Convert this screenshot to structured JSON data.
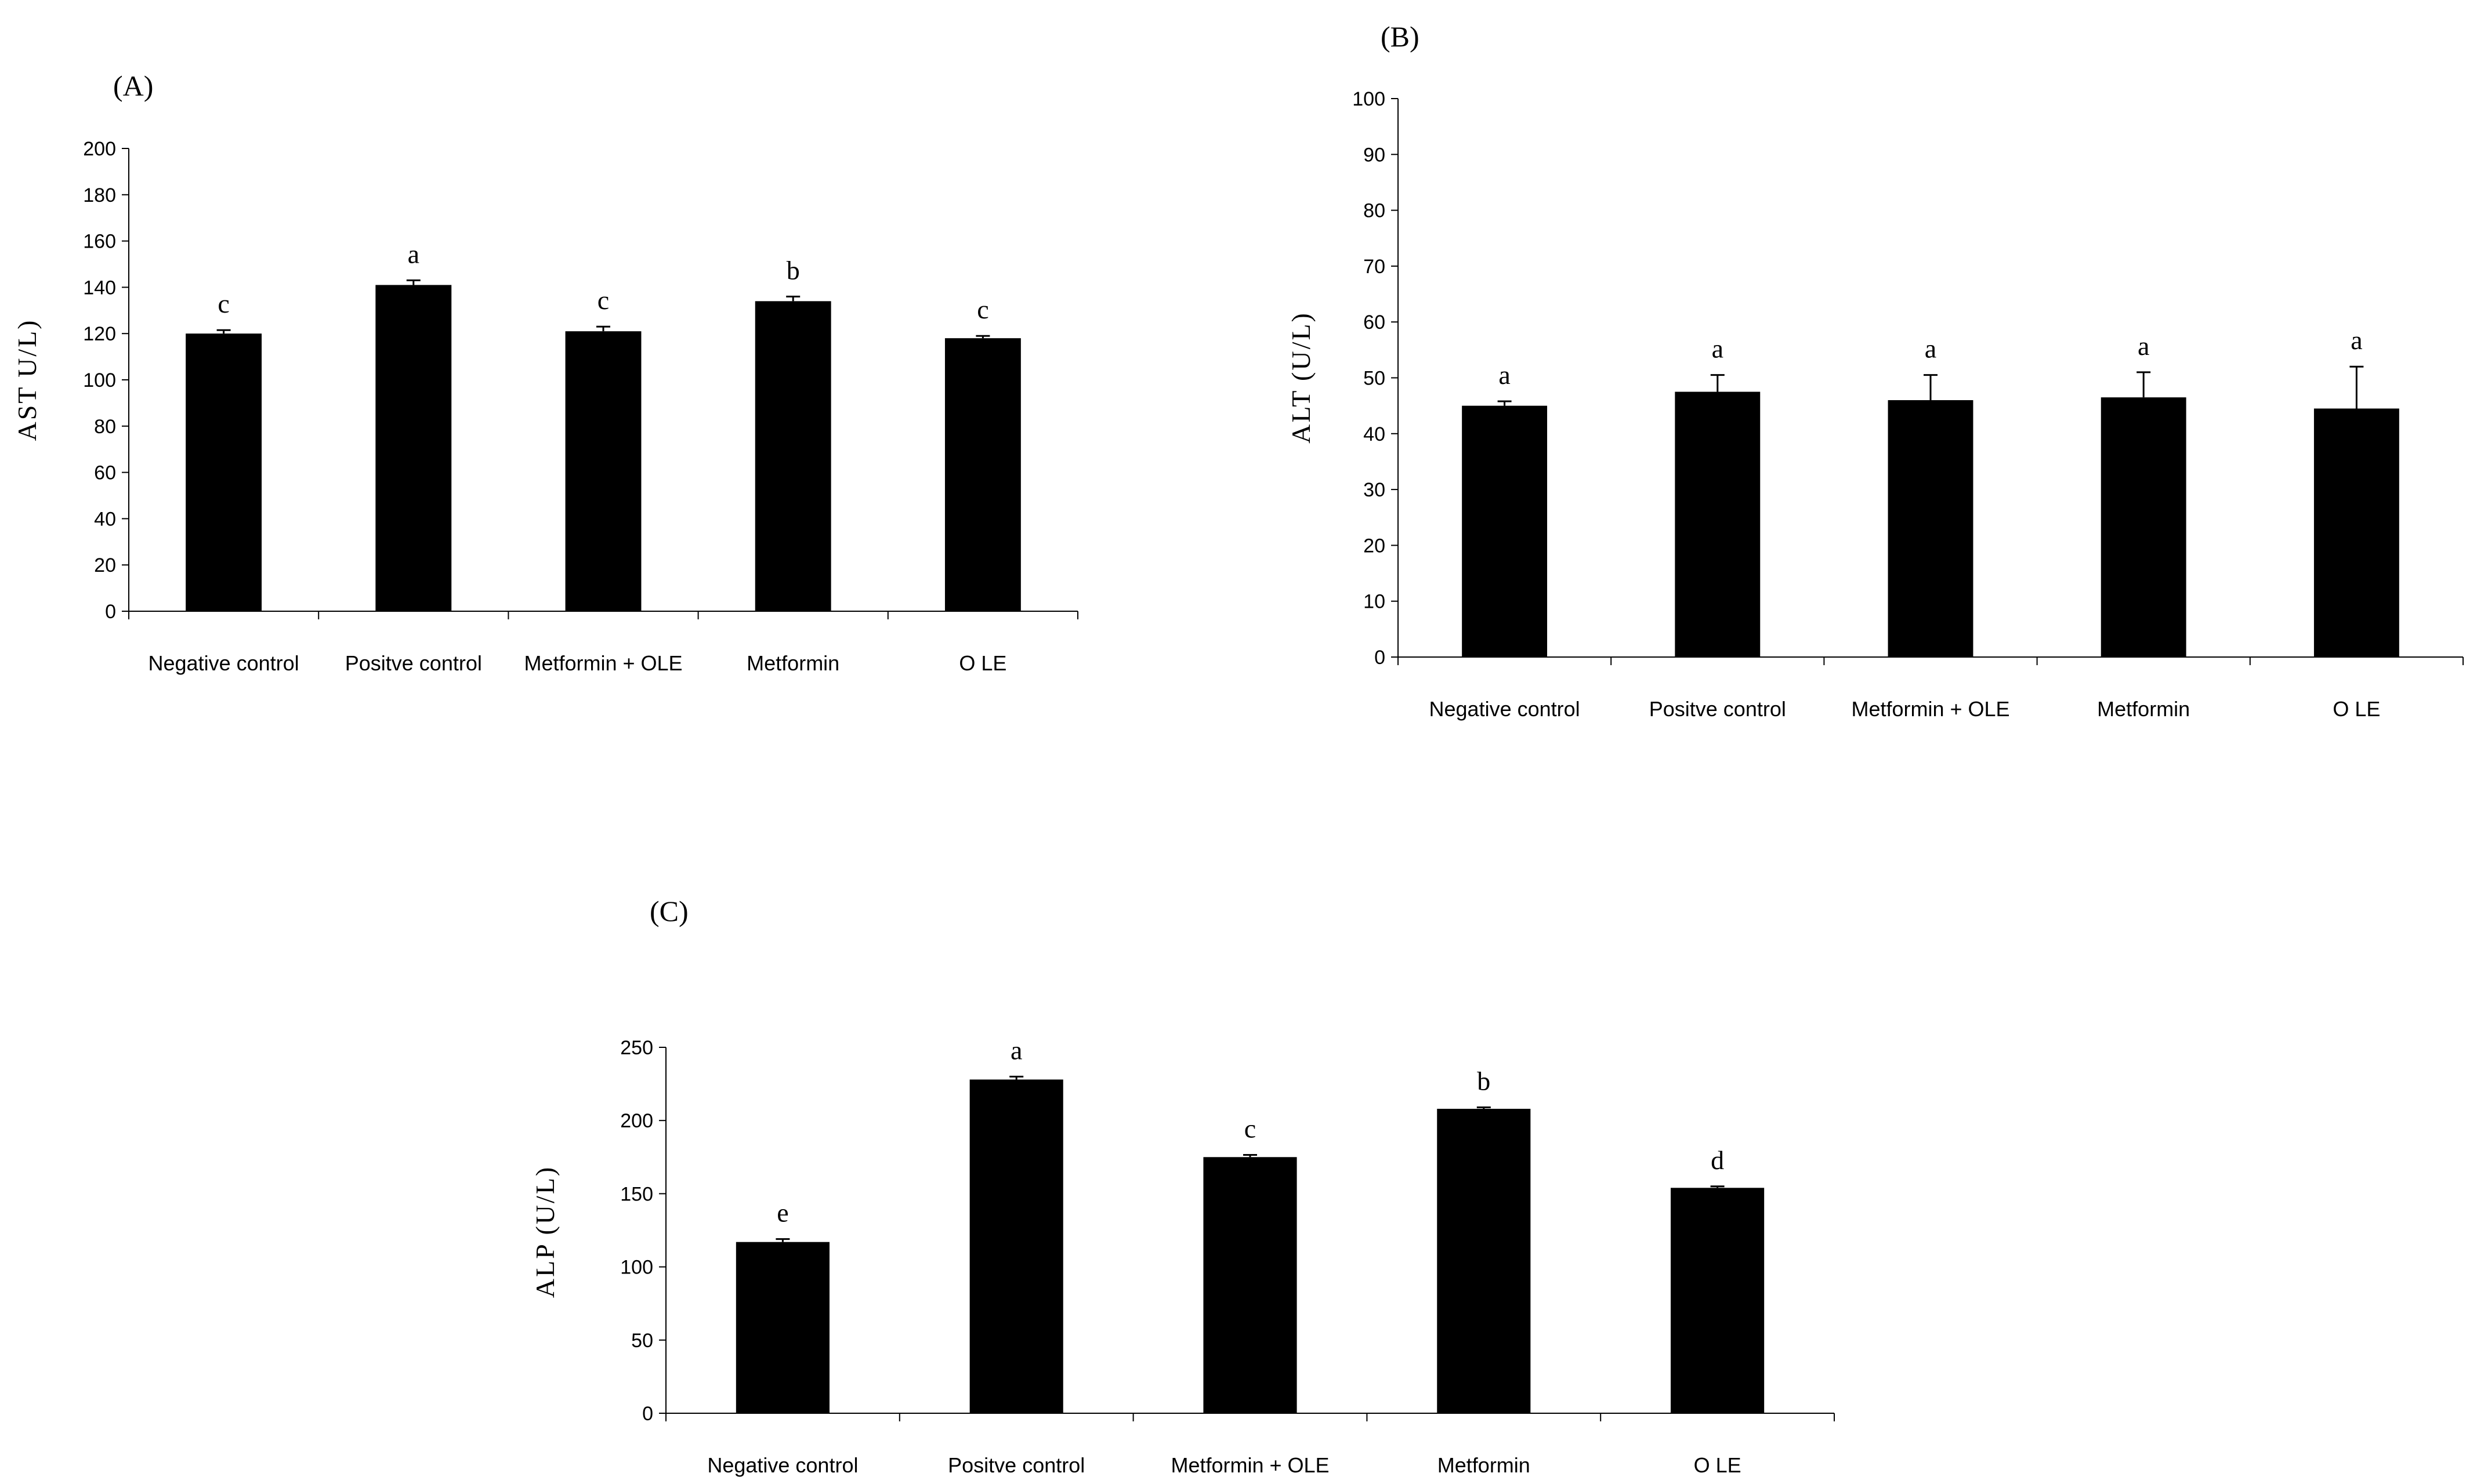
{
  "chart_data": [
    {
      "type": "bar",
      "panel": "(A)",
      "title": "",
      "xlabel": "",
      "ylabel": "AST U/L)",
      "ylim": [
        0,
        200
      ],
      "yticks": [
        0,
        20,
        40,
        60,
        80,
        100,
        120,
        140,
        160,
        180,
        200
      ],
      "categories": [
        "Negative control",
        "Positve control",
        "Metformin + OLE",
        "Metformin",
        "O LE"
      ],
      "values": [
        120,
        141,
        121,
        134,
        118
      ],
      "errors": [
        1.5,
        2,
        2,
        2,
        1
      ],
      "significance": [
        "c",
        "a",
        "c",
        "b",
        "c"
      ],
      "color": "#000000"
    },
    {
      "type": "bar",
      "panel": "(B)",
      "title": "",
      "xlabel": "",
      "ylabel": "ALT (U/L)",
      "ylim": [
        0,
        100
      ],
      "yticks": [
        0,
        10,
        20,
        30,
        40,
        50,
        60,
        70,
        80,
        90,
        100
      ],
      "categories": [
        "Negative control",
        "Positve control",
        "Metformin + OLE",
        "Metformin",
        "O LE"
      ],
      "values": [
        45,
        47.5,
        46,
        46.5,
        44.5
      ],
      "errors": [
        0.8,
        3,
        4.5,
        4.5,
        7.5
      ],
      "significance": [
        "a",
        "a",
        "a",
        "a",
        "a"
      ],
      "color": "#000000"
    },
    {
      "type": "bar",
      "panel": "(C)",
      "title": "",
      "xlabel": "",
      "ylabel": "ALP (U/L)",
      "ylim": [
        0,
        250
      ],
      "yticks": [
        0,
        50,
        100,
        150,
        200,
        250
      ],
      "categories": [
        "Negative control",
        "Positve control",
        "Metformin + OLE",
        "Metformin",
        "O LE"
      ],
      "values": [
        117,
        228,
        175,
        208,
        154
      ],
      "errors": [
        2,
        2,
        1.5,
        1,
        1
      ],
      "significance": [
        "e",
        "a",
        "c",
        "b",
        "d"
      ],
      "color": "#000000"
    }
  ]
}
